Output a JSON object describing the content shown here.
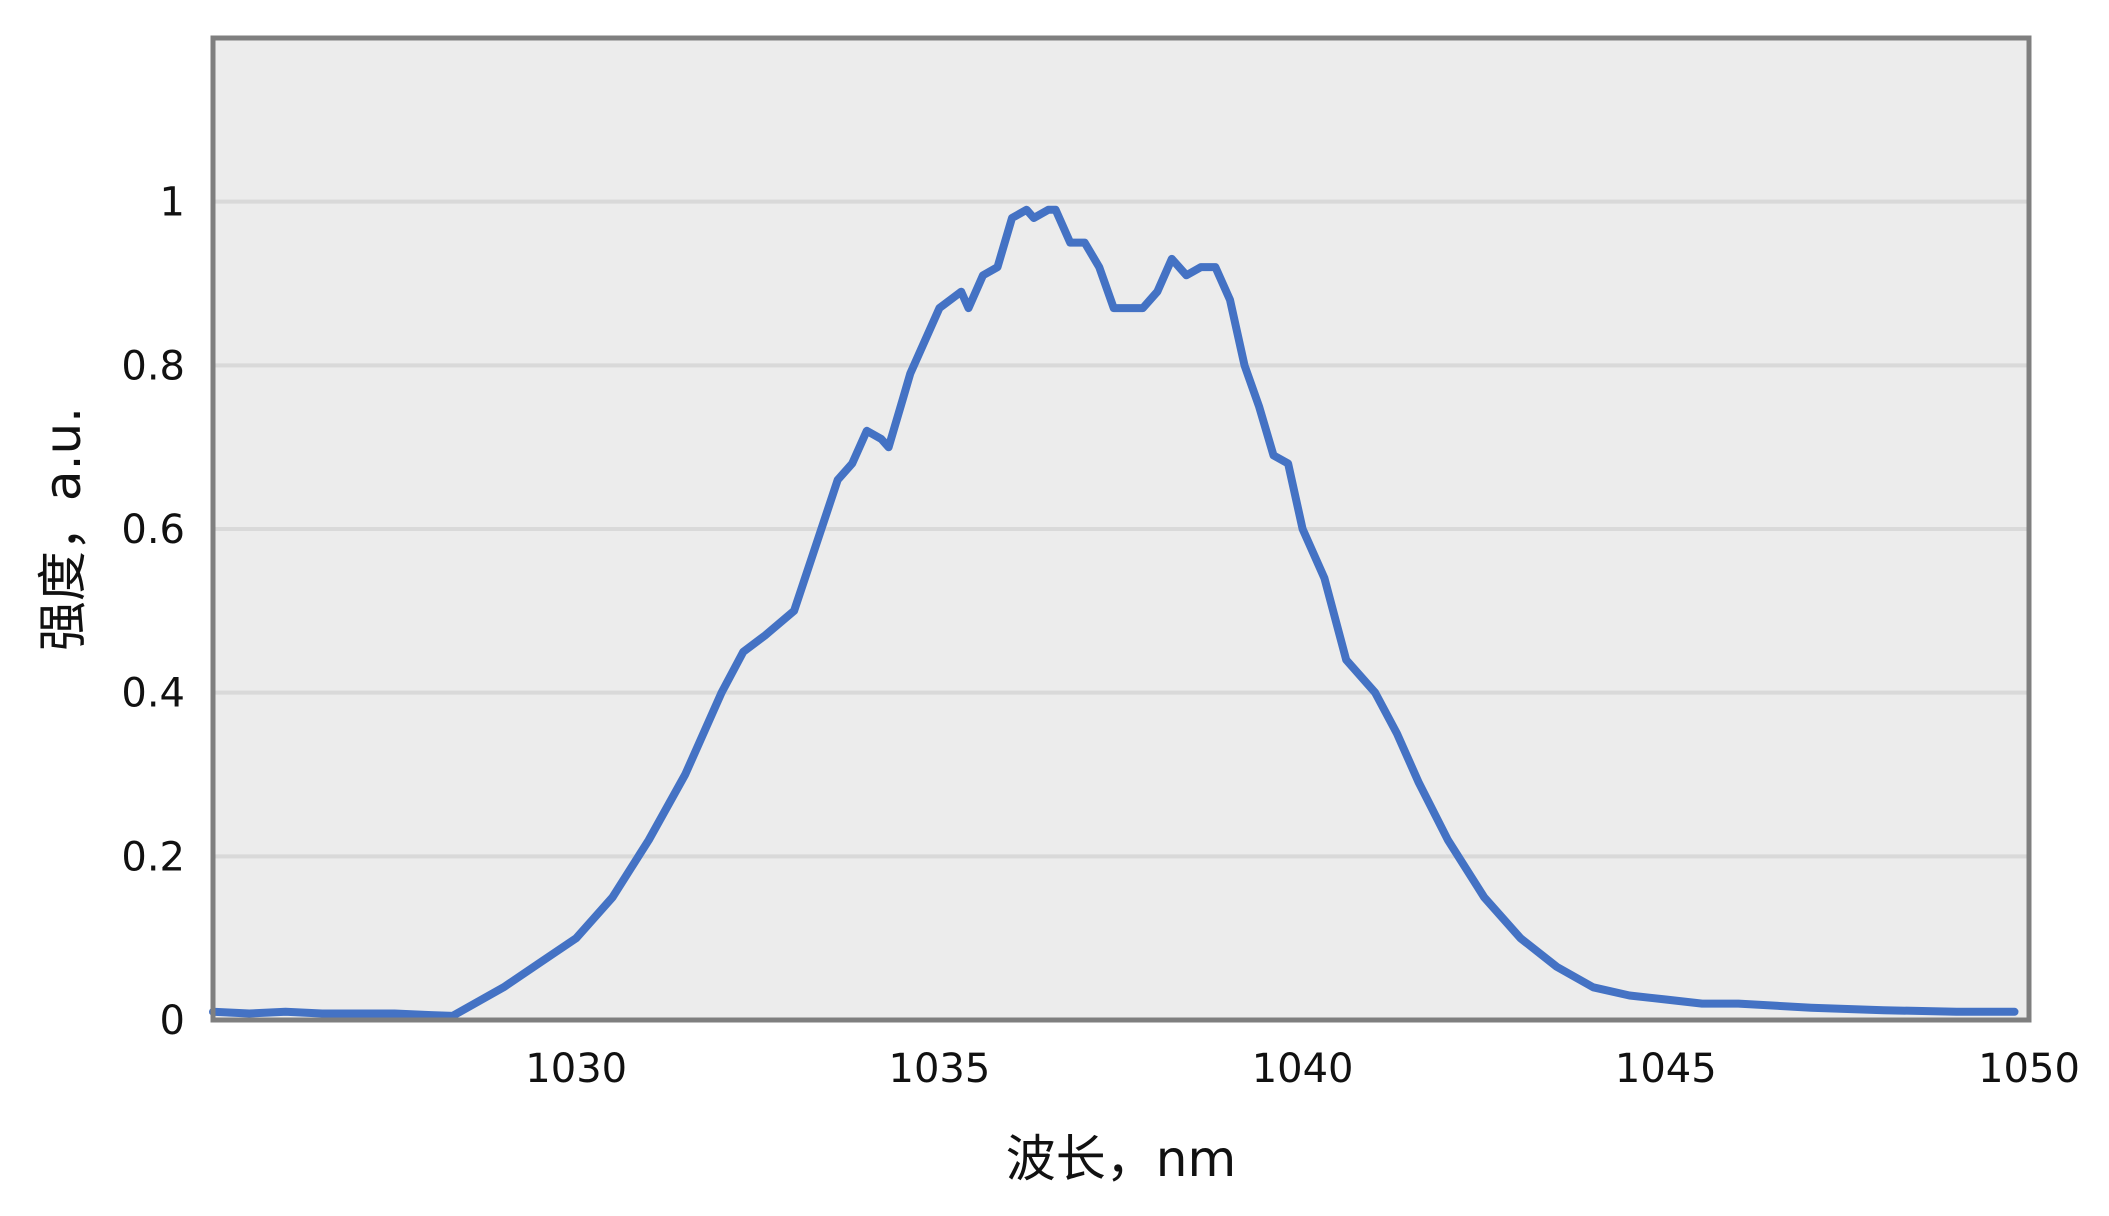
{
  "chart_data": {
    "type": "line",
    "title": "",
    "xlabel": "波长，nm",
    "ylabel": "强度，a.u.",
    "xlim": [
      1025,
      1050
    ],
    "ylim": [
      0,
      1.2
    ],
    "x_ticks": [
      1030,
      1035,
      1040,
      1045,
      1050
    ],
    "y_ticks": [
      0,
      0.2,
      0.4,
      0.6,
      0.8,
      1
    ],
    "x_tick_labels": [
      "1030",
      "1035",
      "1040",
      "1045",
      "1050"
    ],
    "y_tick_labels": [
      "0",
      "0.2",
      "0.4",
      "0.6",
      "0.8",
      "1"
    ],
    "grid": "horizontal",
    "legend": "none",
    "colors": {
      "line": "#4472c4",
      "plot_bg": "#ececec",
      "grid": "#d9d9d9",
      "frame": "#7f7f7f"
    },
    "series": [
      {
        "x": [
          1025.0,
          1025.5,
          1026.0,
          1026.5,
          1027.0,
          1027.5,
          1028.0,
          1028.3,
          1028.6,
          1029.0,
          1029.5,
          1030.0,
          1030.5,
          1031.0,
          1031.5,
          1032.0,
          1032.3,
          1032.6,
          1033.0,
          1033.3,
          1033.6,
          1033.8,
          1034.0,
          1034.2,
          1034.3,
          1034.5,
          1034.6,
          1035.0,
          1035.3,
          1035.4,
          1035.6,
          1035.8,
          1036.0,
          1036.2,
          1036.3,
          1036.5,
          1036.6,
          1036.8,
          1037.0,
          1037.2,
          1037.4,
          1037.6,
          1037.8,
          1038.0,
          1038.2,
          1038.4,
          1038.6,
          1038.8,
          1039.0,
          1039.2,
          1039.4,
          1039.6,
          1039.8,
          1040.0,
          1040.3,
          1040.6,
          1041.0,
          1041.3,
          1041.6,
          1042.0,
          1042.5,
          1043.0,
          1043.5,
          1044.0,
          1044.5,
          1045.0,
          1045.5,
          1046.0,
          1047.0,
          1048.0,
          1049.0,
          1049.8
        ],
        "y": [
          0.01,
          0.008,
          0.01,
          0.008,
          0.008,
          0.008,
          0.006,
          0.005,
          0.02,
          0.04,
          0.07,
          0.1,
          0.15,
          0.22,
          0.3,
          0.4,
          0.45,
          0.47,
          0.5,
          0.58,
          0.66,
          0.68,
          0.72,
          0.71,
          0.7,
          0.76,
          0.79,
          0.87,
          0.89,
          0.87,
          0.91,
          0.92,
          0.98,
          0.99,
          0.98,
          0.99,
          0.99,
          0.95,
          0.95,
          0.92,
          0.87,
          0.87,
          0.87,
          0.89,
          0.93,
          0.91,
          0.92,
          0.92,
          0.88,
          0.8,
          0.75,
          0.69,
          0.68,
          0.6,
          0.54,
          0.44,
          0.4,
          0.35,
          0.29,
          0.22,
          0.15,
          0.1,
          0.065,
          0.04,
          0.03,
          0.025,
          0.02,
          0.02,
          0.015,
          0.012,
          0.01,
          0.01
        ]
      }
    ]
  }
}
